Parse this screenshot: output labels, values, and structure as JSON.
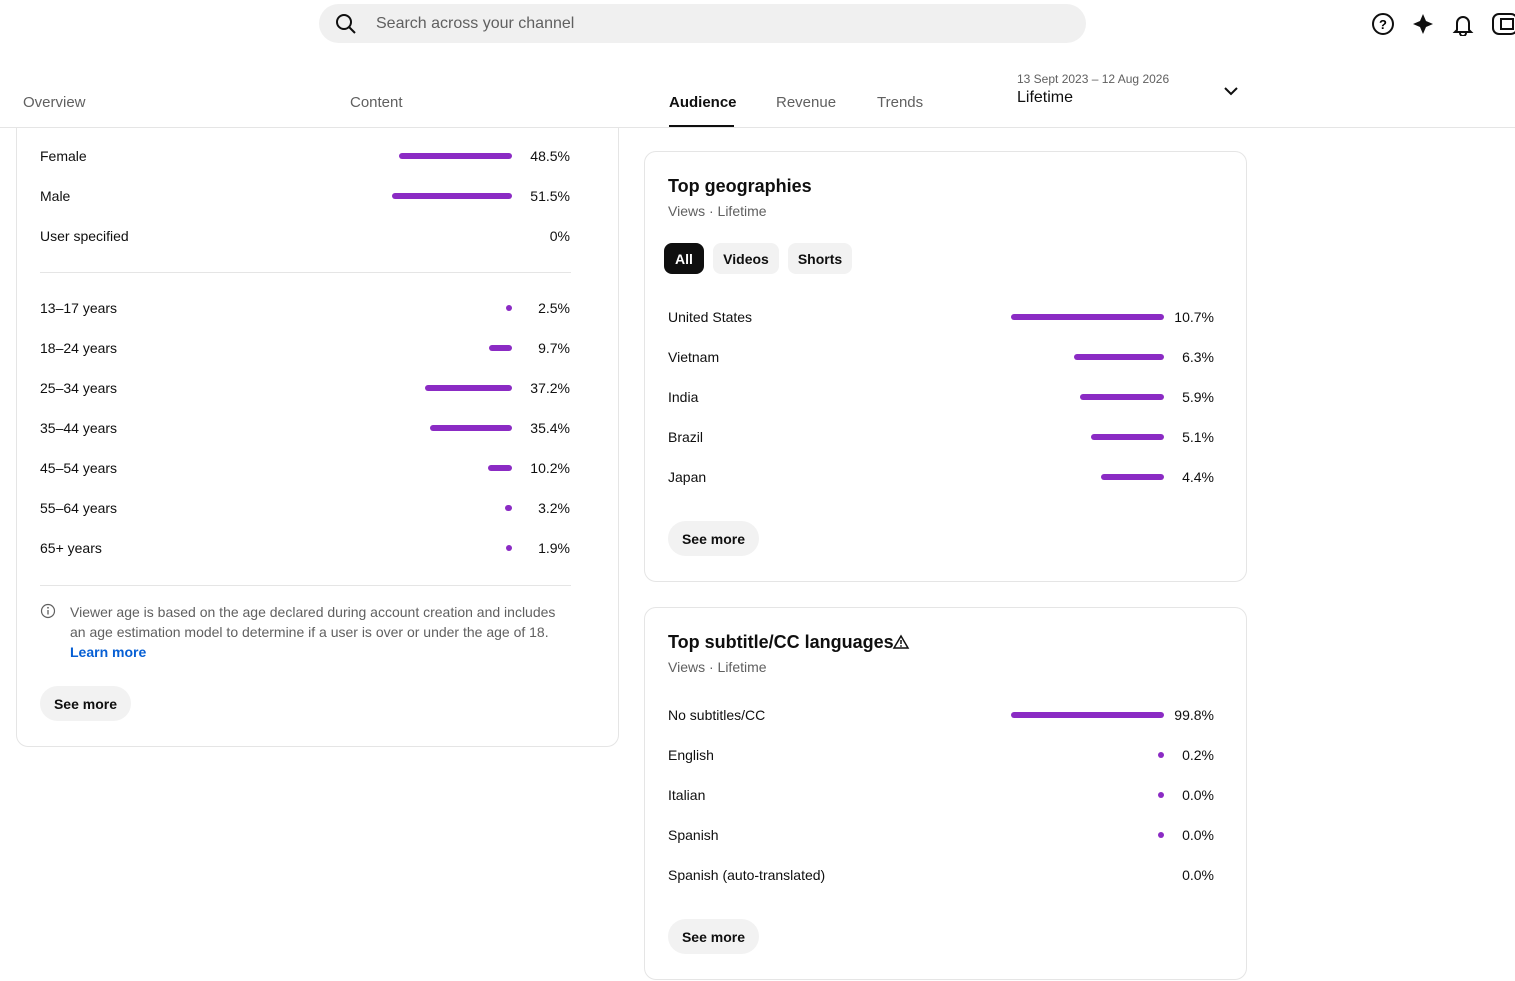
{
  "search": {
    "placeholder": "Search across your channel"
  },
  "tabs": [
    "Overview",
    "Content",
    "Audience",
    "Revenue",
    "Trends"
  ],
  "date_range": {
    "range": "13 Sept 2023 – 12 Aug 2026",
    "label": "Lifetime"
  },
  "gender": [
    {
      "label": "Female",
      "value": 48.5,
      "value_label": "48.5%"
    },
    {
      "label": "Male",
      "value": 51.5,
      "value_label": "51.5%"
    },
    {
      "label": "User specified",
      "value": 0,
      "value_label": "0%"
    }
  ],
  "age": [
    {
      "label": "13–17 years",
      "value": 2.5,
      "value_label": "2.5%"
    },
    {
      "label": "18–24 years",
      "value": 9.7,
      "value_label": "9.7%"
    },
    {
      "label": "25–34 years",
      "value": 37.2,
      "value_label": "37.2%"
    },
    {
      "label": "35–44 years",
      "value": 35.4,
      "value_label": "35.4%"
    },
    {
      "label": "45–54 years",
      "value": 10.2,
      "value_label": "10.2%"
    },
    {
      "label": "55–64 years",
      "value": 3.2,
      "value_label": "3.2%"
    },
    {
      "label": "65+ years",
      "value": 1.9,
      "value_label": "1.9%"
    }
  ],
  "age_note": {
    "text": "Viewer age is based on the age declared during account creation and includes an age estimation model to determine if a user is over or under the age of 18.",
    "link": "Learn more"
  },
  "age_button": "See more",
  "geographies": {
    "title": "Top geographies",
    "subtitle": "Views · Lifetime",
    "filters": [
      "All",
      "Videos",
      "Shorts"
    ],
    "rows": [
      {
        "label": "United States",
        "value": 10.7,
        "value_label": "10.7%"
      },
      {
        "label": "Vietnam",
        "value": 6.3,
        "value_label": "6.3%"
      },
      {
        "label": "India",
        "value": 5.9,
        "value_label": "5.9%"
      },
      {
        "label": "Brazil",
        "value": 5.1,
        "value_label": "5.1%"
      },
      {
        "label": "Japan",
        "value": 4.4,
        "value_label": "4.4%"
      }
    ],
    "button": "See more"
  },
  "subtitles": {
    "title": "Top subtitle/CC languages",
    "subtitle": "Views · Lifetime",
    "rows": [
      {
        "label": "No subtitles/CC",
        "value": 99.8,
        "value_label": "99.8%"
      },
      {
        "label": "English",
        "value": 0.2,
        "value_label": "0.2%"
      },
      {
        "label": "Italian",
        "value": 0.03,
        "value_label": "0.0%"
      },
      {
        "label": "Spanish",
        "value": 0.02,
        "value_label": "0.0%"
      },
      {
        "label": "Spanish (auto-translated)",
        "value": 0,
        "value_label": "0.0%"
      }
    ],
    "button": "See more"
  }
}
